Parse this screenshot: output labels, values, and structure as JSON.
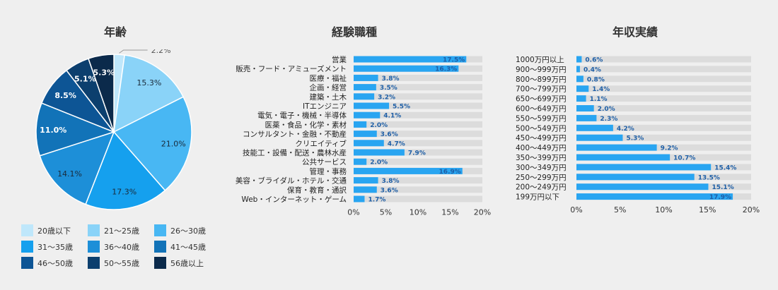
{
  "charts": {
    "age": {
      "title": "年齢"
    },
    "job": {
      "title": "経験職種"
    },
    "income": {
      "title": "年収実績"
    }
  },
  "chart_data": [
    {
      "type": "pie",
      "title": "年齢",
      "categories": [
        "20歳以下",
        "21〜25歳",
        "26〜30歳",
        "31〜35歳",
        "36〜40歳",
        "41〜45歳",
        "46〜50歳",
        "50〜55歳",
        "56歳以上"
      ],
      "values": [
        2.2,
        15.3,
        21.0,
        17.3,
        14.1,
        11.0,
        8.5,
        5.1,
        5.3
      ],
      "labels": [
        "2.2%",
        "15.3%",
        "21.0%",
        "17.3%",
        "14.1%",
        "11.0%",
        "8.5%",
        "5.1%",
        "5.3%"
      ],
      "colors": [
        "#bfe7fb",
        "#8ad3f8",
        "#48b7f3",
        "#15a0ee",
        "#1d8fd8",
        "#1273b8",
        "#0d5595",
        "#0c3f6e",
        "#0b2a4b"
      ],
      "legend": "bottom"
    },
    {
      "type": "bar",
      "orientation": "horizontal",
      "title": "経験職種",
      "categories": [
        "営業",
        "販売・フード・アミューズメント",
        "医療・福祉",
        "企画・経営",
        "建築・土木",
        "ITエンジニア",
        "電気・電子・機械・半導体",
        "医薬・食品・化学・素材",
        "コンサルタント・金融・不動産",
        "クリエイティブ",
        "技能工・設備・配送・農林水産",
        "公共サービス",
        "管理・事務",
        "美容・ブライダル・ホテル・交通",
        "保育・教育・通訳",
        "Web・インターネット・ゲーム"
      ],
      "values": [
        17.5,
        16.3,
        3.8,
        3.5,
        3.2,
        5.5,
        4.1,
        2.0,
        3.6,
        4.7,
        7.9,
        2.0,
        16.9,
        3.8,
        3.6,
        1.7
      ],
      "labels": [
        "17.5%",
        "16.3%",
        "3.8%",
        "3.5%",
        "3.2%",
        "5.5%",
        "4.1%",
        "2.0%",
        "3.6%",
        "4.7%",
        "7.9%",
        "2.0%",
        "16.9%",
        "3.8%",
        "3.6%",
        "1.7%"
      ],
      "xlim": [
        0,
        20
      ],
      "ticks": [
        "0%",
        "5%",
        "10%",
        "15%",
        "20%"
      ],
      "bar_color": "#29a5f1",
      "track_color": "#dcdcdc"
    },
    {
      "type": "bar",
      "orientation": "horizontal",
      "title": "年収実績",
      "categories": [
        "1000万円以上",
        "900〜999万円",
        "800〜899万円",
        "700〜799万円",
        "650〜699万円",
        "600〜649万円",
        "550〜599万円",
        "500〜549万円",
        "450〜499万円",
        "400〜449万円",
        "350〜399万円",
        "300〜349万円",
        "250〜299万円",
        "200〜249万円",
        "199万円以下"
      ],
      "values": [
        0.6,
        0.4,
        0.8,
        1.4,
        1.1,
        2.0,
        2.3,
        4.2,
        5.3,
        9.2,
        10.7,
        15.4,
        13.5,
        15.1,
        17.9
      ],
      "labels": [
        "0.6%",
        "0.4%",
        "0.8%",
        "1.4%",
        "1.1%",
        "2.0%",
        "2.3%",
        "4.2%",
        "5.3%",
        "9.2%",
        "10.7%",
        "15.4%",
        "13.5%",
        "15.1%",
        "17.9%"
      ],
      "xlim": [
        0,
        20
      ],
      "ticks": [
        "0%",
        "5%",
        "10%",
        "15%",
        "20%"
      ],
      "bar_color": "#29a5f1",
      "track_color": "#dcdcdc"
    }
  ]
}
